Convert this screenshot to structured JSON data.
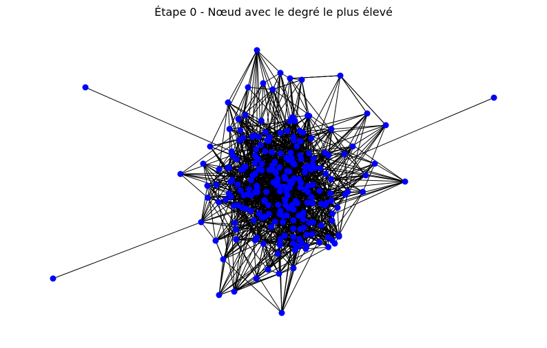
{
  "title": "Étape 0 - Nœud avec le degré le plus élevé",
  "colors": {
    "node": "#0000ff",
    "edge": "#000000",
    "background": "#ffffff"
  },
  "graph": {
    "layout": "force-directed (spring)",
    "node_count": 244,
    "density": "dense central cluster with a few peripheral outliers each attached by a single edge"
  }
}
